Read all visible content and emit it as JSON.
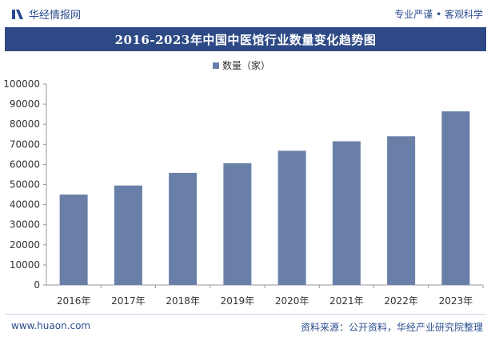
{
  "header": {
    "brand": "华经情报网",
    "tagline": "专业严谨 • 客观科学"
  },
  "colors": {
    "bar": "#6a7fa7",
    "title_bg": "#2e4a86",
    "brand": "#2a4d8f"
  },
  "chart_data": {
    "type": "bar",
    "title": "2016-2023年中国中医馆行业数量变化趋势图",
    "categories": [
      "2016年",
      "2017年",
      "2018年",
      "2019年",
      "2020年",
      "2021年",
      "2022年",
      "2023年"
    ],
    "series": [
      {
        "name": "数量（家）",
        "values": [
          45000,
          49500,
          55800,
          60600,
          66800,
          71500,
          74000,
          86400
        ]
      }
    ],
    "ylim": [
      0,
      100000
    ],
    "yticks": [
      0,
      10000,
      20000,
      30000,
      40000,
      50000,
      60000,
      70000,
      80000,
      90000,
      100000
    ],
    "xlabel": "",
    "ylabel": "",
    "legend_position": "top-center",
    "grid": false
  },
  "footer": {
    "website": "www.huaon.com",
    "source": "资料来源：公开资料，华经产业研究院整理"
  }
}
